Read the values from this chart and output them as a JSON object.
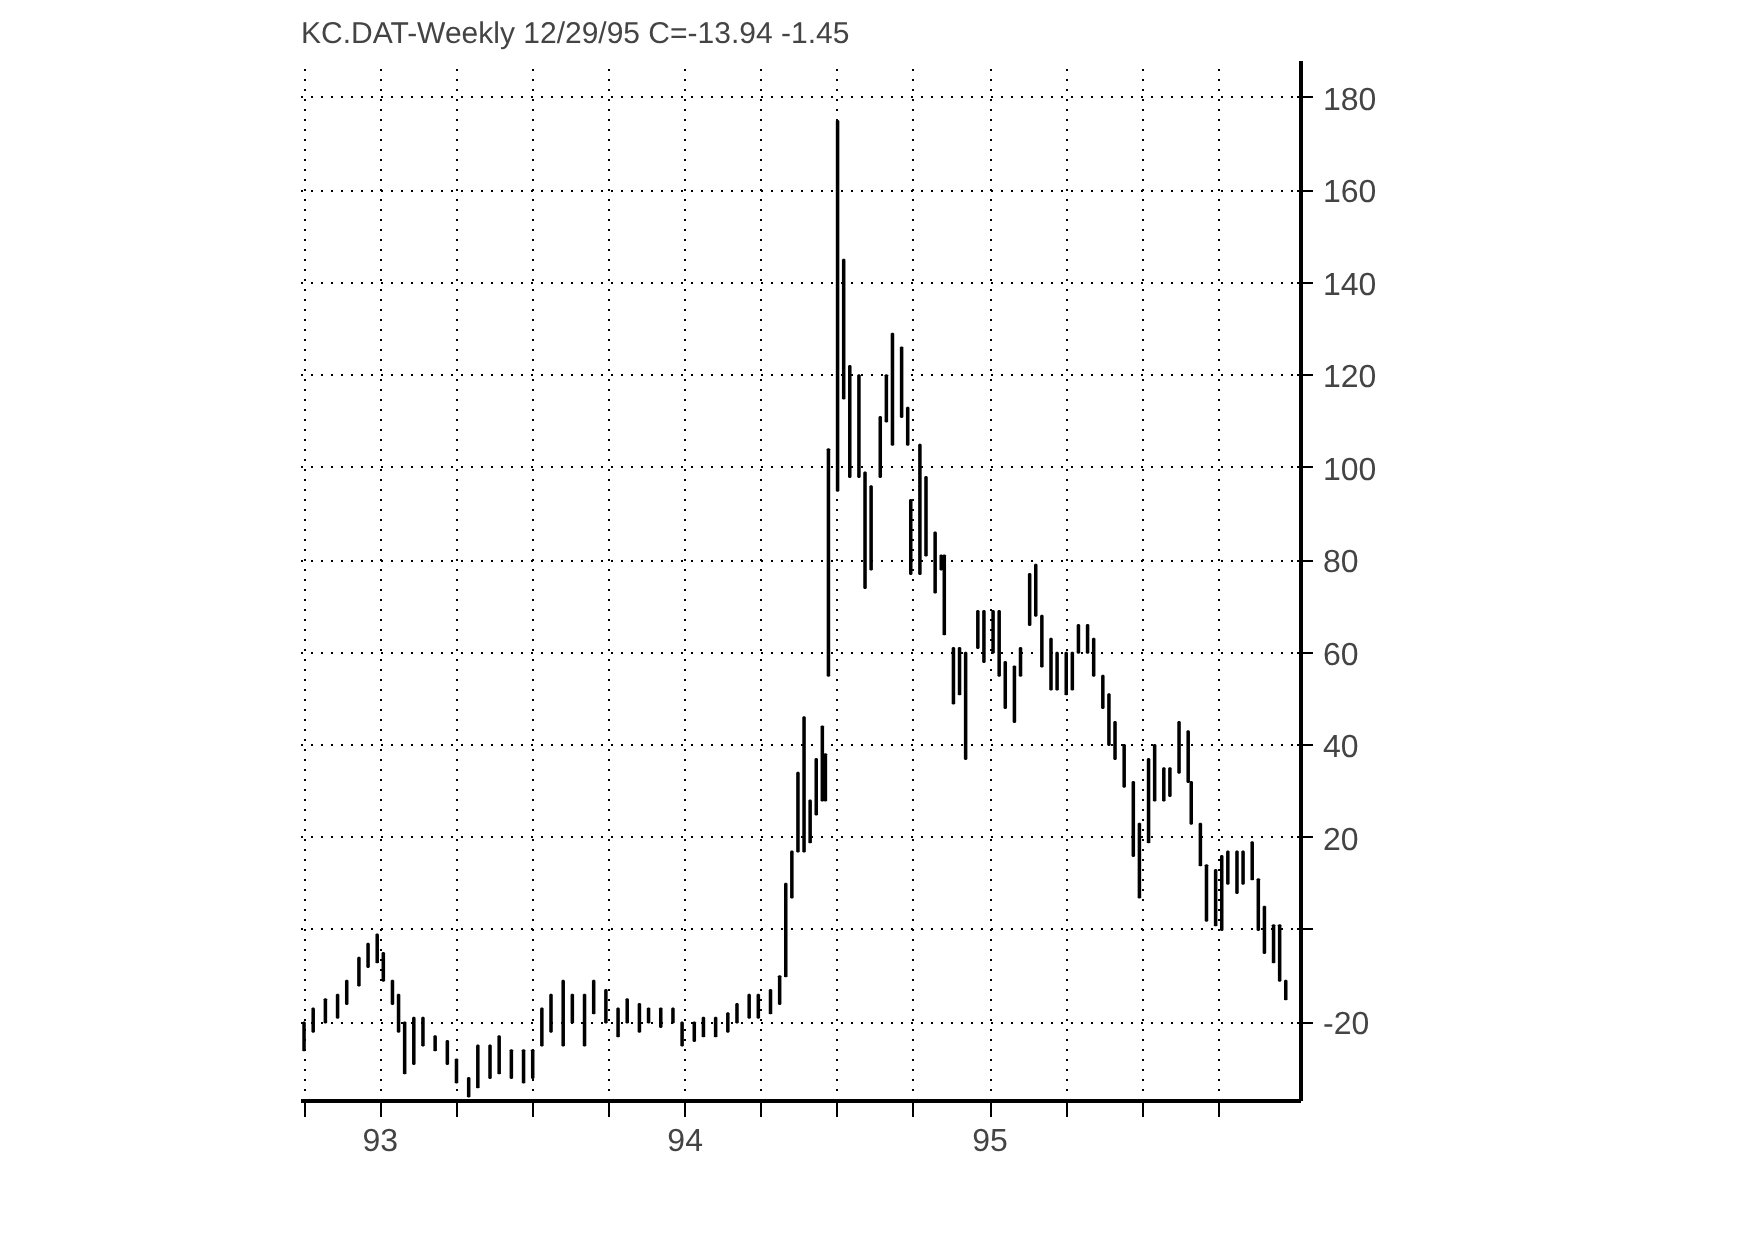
{
  "chart_data": {
    "type": "bar",
    "title": "KC.DAT-Weekly   12/29/95  C=-13.94  -1.45",
    "x": [
      1992.75,
      1992.78,
      1992.82,
      1992.86,
      1992.89,
      1992.93,
      1992.96,
      1992.99,
      1993.01,
      1993.04,
      1993.06,
      1993.08,
      1993.11,
      1993.14,
      1993.18,
      1993.22,
      1993.25,
      1993.29,
      1993.32,
      1993.36,
      1993.39,
      1993.43,
      1993.47,
      1993.5,
      1993.53,
      1993.56,
      1993.6,
      1993.63,
      1993.67,
      1993.7,
      1993.74,
      1993.78,
      1993.81,
      1993.85,
      1993.88,
      1993.92,
      1993.96,
      1993.99,
      1994.03,
      1994.06,
      1994.1,
      1994.14,
      1994.17,
      1994.21,
      1994.24,
      1994.28,
      1994.31,
      1994.33,
      1994.35,
      1994.37,
      1994.39,
      1994.41,
      1994.43,
      1994.45,
      1994.46,
      1994.47,
      1994.5,
      1994.52,
      1994.54,
      1994.57,
      1994.59,
      1994.61,
      1994.64,
      1994.66,
      1994.68,
      1994.71,
      1994.73,
      1994.74,
      1994.77,
      1994.79,
      1994.82,
      1994.84,
      1994.85,
      1994.88,
      1994.9,
      1994.92,
      1994.96,
      1994.98,
      1995.01,
      1995.03,
      1995.05,
      1995.08,
      1995.1,
      1995.13,
      1995.15,
      1995.17,
      1995.2,
      1995.22,
      1995.25,
      1995.27,
      1995.29,
      1995.32,
      1995.34,
      1995.37,
      1995.39,
      1995.41,
      1995.44,
      1995.47,
      1995.49,
      1995.52,
      1995.54,
      1995.57,
      1995.59,
      1995.62,
      1995.65,
      1995.66,
      1995.69,
      1995.71,
      1995.74,
      1995.76,
      1995.78,
      1995.81,
      1995.83,
      1995.86,
      1995.88,
      1995.9,
      1995.93,
      1995.95,
      1995.97
    ],
    "base": [
      -26,
      -22,
      -20,
      -19,
      -16,
      -12,
      -8,
      -7,
      -11,
      -16,
      -22,
      -31,
      -29,
      -25,
      -26,
      -29,
      -33,
      -36,
      -34,
      -32,
      -31,
      -32,
      -33,
      -32,
      -25,
      -22,
      -25,
      -20,
      -25,
      -18,
      -20,
      -23,
      -20,
      -22,
      -20,
      -21,
      -20,
      -25,
      -24,
      -23,
      -23,
      -22,
      -20,
      -19,
      -19,
      -18,
      -16,
      -10,
      7,
      17,
      17,
      19,
      25,
      28,
      28,
      55,
      95,
      115,
      98,
      98,
      74,
      78,
      98,
      110,
      105,
      111,
      105,
      77,
      77,
      81,
      73,
      78,
      64,
      49,
      51,
      37,
      61,
      58,
      60,
      55,
      48,
      45,
      55,
      66,
      68,
      57,
      52,
      52,
      51,
      52,
      60,
      60,
      55,
      48,
      40,
      37,
      31,
      16,
      7,
      19,
      28,
      28,
      29,
      34,
      32,
      23,
      14,
      2,
      1,
      0,
      10,
      8,
      10,
      11,
      0,
      -5,
      -7,
      -11,
      -15
    ],
    "values": [
      6,
      5,
      5,
      5,
      5,
      6,
      5,
      6,
      6,
      5,
      8,
      11,
      10,
      6,
      3,
      5,
      5,
      4,
      9,
      7,
      8,
      6,
      7,
      6,
      8,
      8,
      14,
      6,
      11,
      7,
      7,
      6,
      5,
      6,
      3,
      4,
      3,
      5,
      4,
      4,
      4,
      4,
      4,
      5,
      5,
      5,
      6,
      20,
      10,
      17,
      29,
      9,
      12,
      16,
      10,
      49,
      80,
      30,
      24,
      22,
      25,
      18,
      13,
      10,
      24,
      15,
      8,
      16,
      28,
      17,
      13,
      3,
      17,
      12,
      10,
      23,
      8,
      11,
      9,
      14,
      10,
      12,
      6,
      11,
      11,
      11,
      11,
      8,
      9,
      8,
      6,
      6,
      8,
      7,
      11,
      8,
      9,
      16,
      16,
      18,
      12,
      7,
      6,
      11,
      11,
      9,
      9,
      12,
      12,
      16,
      7,
      9,
      7,
      8,
      11,
      10,
      8,
      12,
      4
    ],
    "color": "#000000",
    "xlim": [
      1992.74,
      1996.02
    ],
    "ylim": [
      -37,
      188
    ],
    "xticks": [
      {
        "value": 1992.75,
        "label": null
      },
      {
        "value": 1993,
        "label": "93"
      },
      {
        "value": 1993.25,
        "label": null
      },
      {
        "value": 1993.5,
        "label": null
      },
      {
        "value": 1993.75,
        "label": null
      },
      {
        "value": 1994,
        "label": "94"
      },
      {
        "value": 1994.25,
        "label": null
      },
      {
        "value": 1994.5,
        "label": null
      },
      {
        "value": 1994.75,
        "label": null
      },
      {
        "value": 1995,
        "label": "95"
      },
      {
        "value": 1995.25,
        "label": null
      },
      {
        "value": 1995.5,
        "label": null
      },
      {
        "value": 1995.75,
        "label": null
      }
    ],
    "yticks": [
      -20,
      {
        "value": 0,
        "label": null
      },
      20,
      40,
      60,
      80,
      100,
      120,
      140,
      160,
      180
    ],
    "grid": true
  }
}
